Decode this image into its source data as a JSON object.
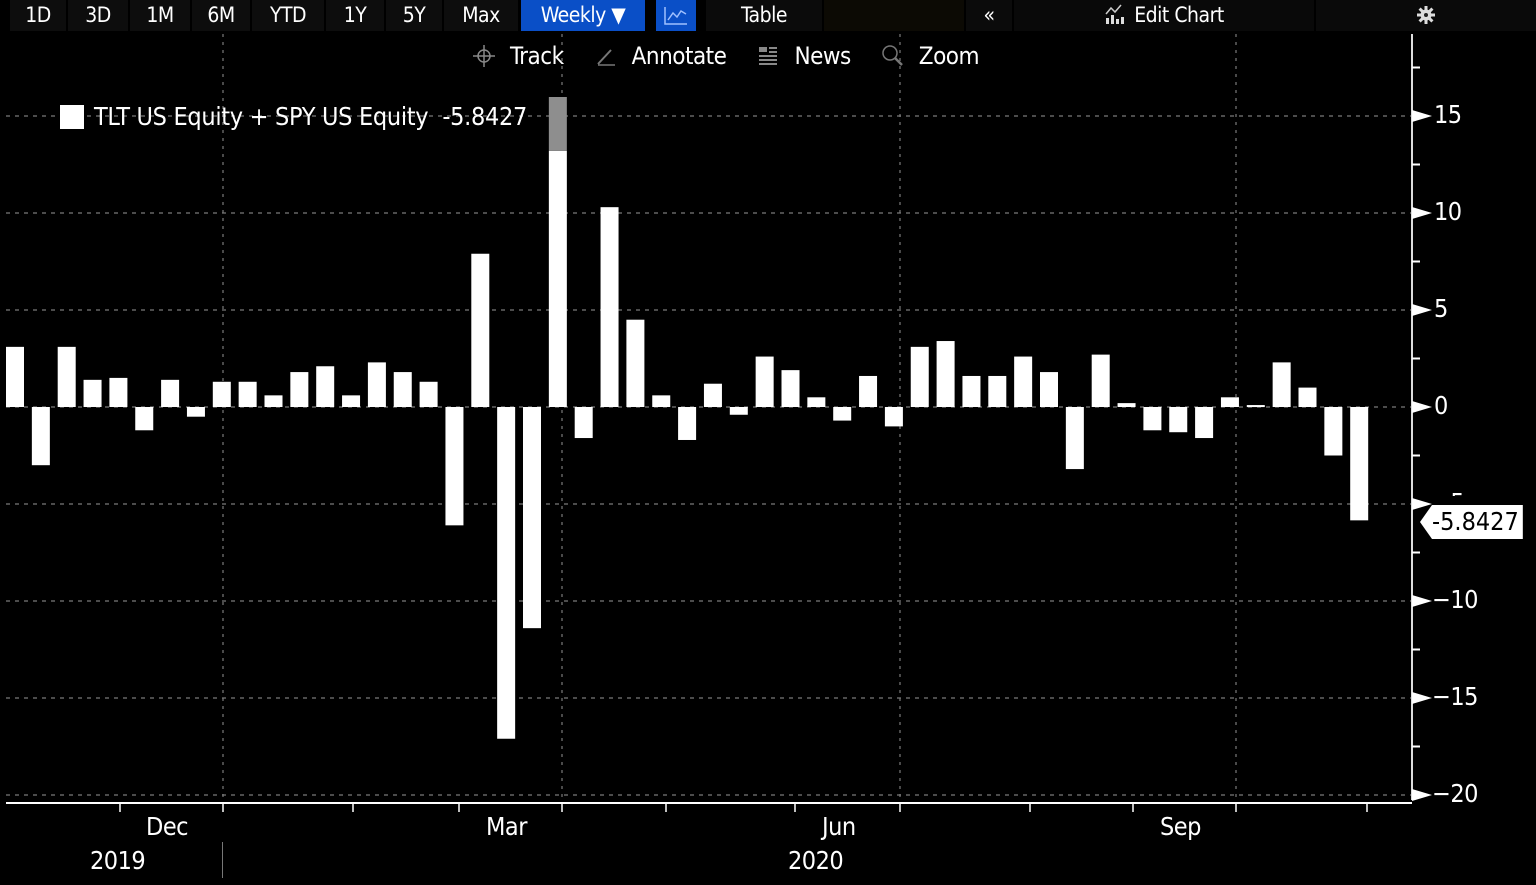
{
  "toolbar": {
    "ranges": [
      "1D",
      "3D",
      "1M",
      "6M",
      "YTD",
      "1Y",
      "5Y",
      "Max"
    ],
    "frequency_label": "Weekly ▼",
    "chart_type_icon": "line-chart-icon",
    "table_label": "Table",
    "collapse_label": "«",
    "edit_chart_label": "Edit Chart",
    "settings_icon": "gear-icon"
  },
  "subbar": {
    "items": [
      {
        "label": "Track",
        "icon": "crosshair-icon"
      },
      {
        "label": "Annotate",
        "icon": "pencil-icon"
      },
      {
        "label": "News",
        "icon": "news-icon"
      },
      {
        "label": "Zoom",
        "icon": "magnifier-icon"
      }
    ]
  },
  "legend": {
    "series_name": "TLT US Equity + SPY US Equity",
    "last_value": "-5.8427"
  },
  "colors": {
    "background": "#000000",
    "bars": "#ffffff",
    "accent": "#0a4fc7",
    "grid": "#7a7a7a"
  },
  "last_value_tag": "-5.8427",
  "chart_data": {
    "type": "bar",
    "title": "TLT US Equity + SPY US Equity",
    "frequency": "Weekly",
    "xlabel": "",
    "ylabel": "",
    "ylim": [
      -20,
      18
    ],
    "y_ticks": [
      15,
      10,
      5,
      0,
      -5,
      -10,
      -15,
      -20
    ],
    "x_month_labels": [
      "Dec",
      "Mar",
      "Jun",
      "Sep"
    ],
    "x_year_labels": [
      "2019",
      "2020"
    ],
    "grid": true,
    "legend_position": "top-left",
    "last_value": -5.8427,
    "series": [
      {
        "name": "TLT US Equity + SPY US Equity",
        "values": [
          3.1,
          -3.0,
          3.1,
          1.4,
          1.5,
          -1.2,
          1.4,
          -0.5,
          1.3,
          1.3,
          0.6,
          1.8,
          2.1,
          0.6,
          2.3,
          1.8,
          1.3,
          -6.1,
          7.9,
          -17.1,
          -11.4,
          13.2,
          -1.6,
          10.3,
          4.5,
          0.6,
          -1.7,
          1.2,
          -0.4,
          2.6,
          1.9,
          0.5,
          -0.7,
          1.6,
          -1.0,
          3.1,
          3.4,
          1.6,
          1.6,
          2.6,
          1.8,
          -3.2,
          2.7,
          0.2,
          -1.2,
          -1.3,
          -1.6,
          0.5,
          0.1,
          2.3,
          1.0,
          -2.5,
          -5.8427
        ]
      }
    ]
  }
}
